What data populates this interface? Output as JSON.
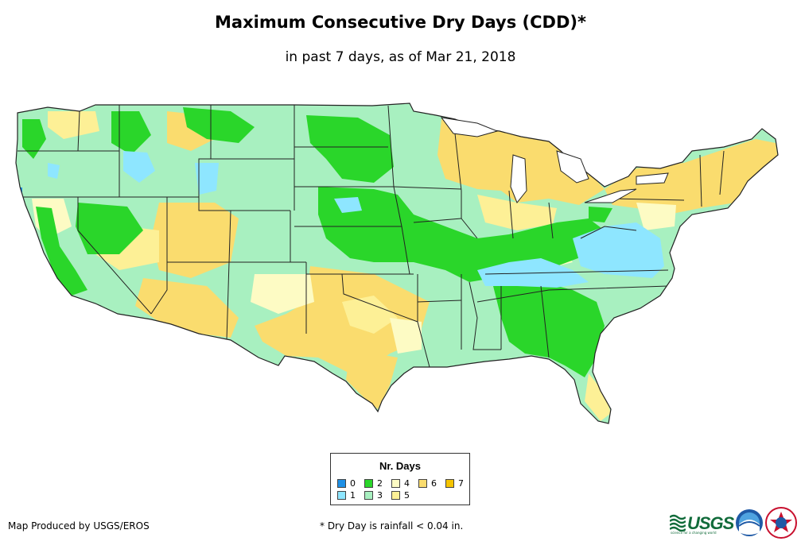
{
  "title": "Maximum Consecutive Dry Days (CDD)*",
  "subtitle": "in past 7 days, as of Mar 21, 2018",
  "legend": {
    "title": "Nr. Days",
    "items": [
      {
        "label": "0",
        "color": "#1e90e6"
      },
      {
        "label": "1",
        "color": "#8ee6ff"
      },
      {
        "label": "2",
        "color": "#2ad62a"
      },
      {
        "label": "3",
        "color": "#a8f0c0"
      },
      {
        "label": "4",
        "color": "#fdfbc4"
      },
      {
        "label": "5",
        "color": "#fdf096"
      },
      {
        "label": "6",
        "color": "#fadc6e"
      },
      {
        "label": "7",
        "color": "#f5c400"
      }
    ]
  },
  "credit": "Map Produced by USGS/EROS",
  "footnote": "* Dry Day is rainfall < 0.04 in.",
  "logos": {
    "usgs": "USGS",
    "usgs_tagline": "science for a changing world",
    "noaa": "noaa",
    "nws": "NATIONAL WEATHER SERVICE"
  }
}
